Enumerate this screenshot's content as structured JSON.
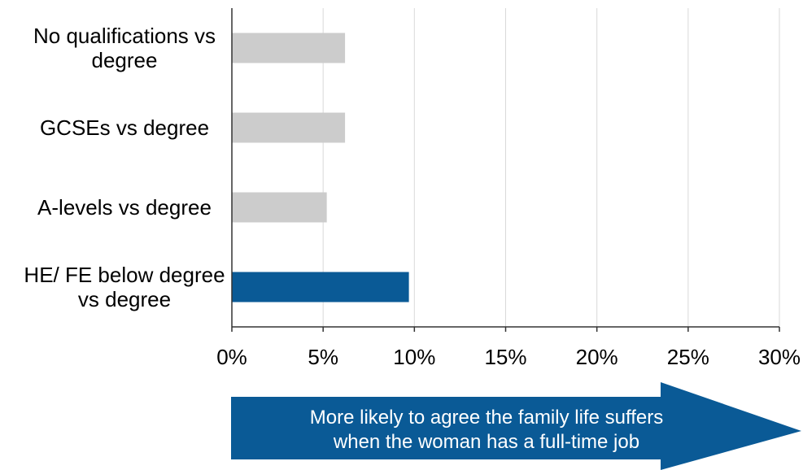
{
  "chart_data": {
    "type": "bar",
    "orientation": "horizontal",
    "categories": [
      [
        "No qualifications vs",
        "degree"
      ],
      [
        "GCSEs vs degree"
      ],
      [
        "A-levels vs degree"
      ],
      [
        "HE/ FE below degree",
        "vs degree"
      ]
    ],
    "values": [
      6.2,
      6.2,
      5.2,
      9.7
    ],
    "highlight_index": 3,
    "x_ticks": [
      "0%",
      "5%",
      "10%",
      "15%",
      "20%",
      "25%",
      "30%"
    ],
    "xlim": [
      0,
      30
    ],
    "grid": true,
    "colors": {
      "default": "#cccccc",
      "highlight": "#0a5a96",
      "arrow": "#0a5a96",
      "grid": "#d9d9d9",
      "axis": "#333333"
    },
    "annotation": [
      "More likely to agree the family life suffers",
      "when the woman has a full-time job"
    ]
  }
}
